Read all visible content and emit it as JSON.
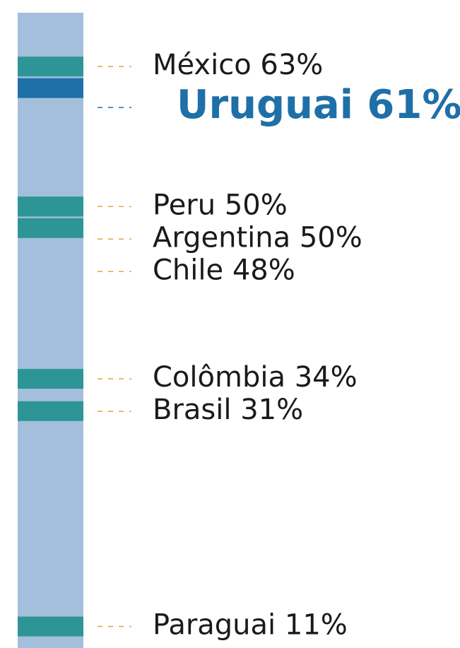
{
  "chart_data": {
    "type": "strip",
    "categories": [
      "México",
      "Uruguai",
      "Peru",
      "Argentina",
      "Chile",
      "Colômbia",
      "Brasil",
      "Paraguai"
    ],
    "values": [
      63,
      61,
      50,
      50,
      48,
      34,
      31,
      11
    ],
    "value_labels": [
      "63%",
      "61%",
      "50%",
      "50%",
      "48%",
      "34%",
      "31%",
      "11%"
    ],
    "color": "#2e9596",
    "colors": [
      "#2e9596",
      "#1f6fa8",
      "#2e9596",
      "#2e9596",
      "#2e9596",
      "#2e9596",
      "#2e9596",
      "#2e9596"
    ],
    "ylim": [
      9,
      68
    ]
  }
}
